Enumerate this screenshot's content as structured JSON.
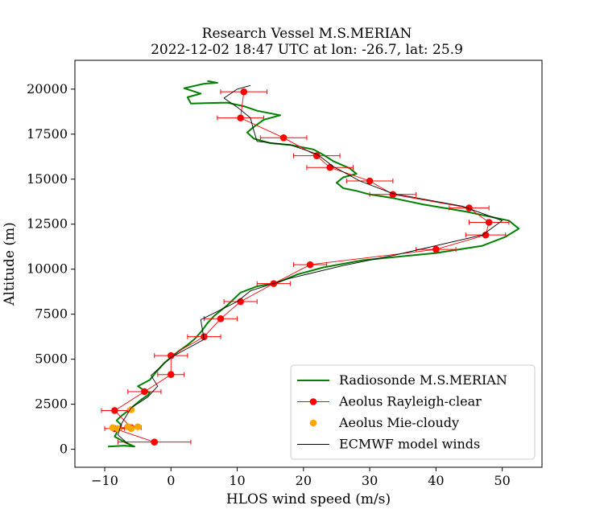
{
  "chart_data": {
    "type": "line",
    "title": "Research Vessel M.S.MERIAN",
    "subtitle": "2022-12-02 18:47 UTC at lon: -26.7, lat: 25.9",
    "xlabel": "HLOS wind speed (m/s)",
    "ylabel": "Altitude (m)",
    "xlim": [
      -14.5,
      56
    ],
    "ylim": [
      -1000,
      21600
    ],
    "xticks": [
      "−10",
      "0",
      "10",
      "20",
      "30",
      "40",
      "50"
    ],
    "xtick_values": [
      -10,
      0,
      10,
      20,
      30,
      40,
      50
    ],
    "yticks": [
      "0",
      "2500",
      "5000",
      "7500",
      "10000",
      "12500",
      "15000",
      "17500",
      "20000"
    ],
    "ytick_values": [
      0,
      2500,
      5000,
      7500,
      10000,
      12500,
      15000,
      17500,
      20000
    ],
    "grid": false,
    "legend_position": "lower-right",
    "series": [
      {
        "name": "Radiosonde M.S.MERIAN",
        "kind": "line",
        "color": "#008000",
        "points": [
          [
            -9.5,
            150
          ],
          [
            -7.0,
            200
          ],
          [
            -5.5,
            150
          ],
          [
            -7.0,
            400
          ],
          [
            -8.5,
            700
          ],
          [
            -8.0,
            1050
          ],
          [
            -7.5,
            1350
          ],
          [
            -8.2,
            1600
          ],
          [
            -7.5,
            1850
          ],
          [
            -6.6,
            2100
          ],
          [
            -5.5,
            2450
          ],
          [
            -4.5,
            2750
          ],
          [
            -3.5,
            3000
          ],
          [
            -3.2,
            3150
          ],
          [
            -4.2,
            3300
          ],
          [
            -5.0,
            3500
          ],
          [
            -3.2,
            3850
          ],
          [
            -2.2,
            4300
          ],
          [
            -1.0,
            4800
          ],
          [
            0.0,
            5100
          ],
          [
            1.0,
            5400
          ],
          [
            2.5,
            5800
          ],
          [
            3.5,
            6100
          ],
          [
            4.5,
            6500
          ],
          [
            5.5,
            7000
          ],
          [
            6.5,
            7400
          ],
          [
            7.5,
            7700
          ],
          [
            8.5,
            8000
          ],
          [
            9.5,
            8350
          ],
          [
            10.5,
            8700
          ],
          [
            13.0,
            9050
          ],
          [
            16.0,
            9250
          ],
          [
            19.0,
            9700
          ],
          [
            23.0,
            10100
          ],
          [
            29.0,
            10500
          ],
          [
            40.0,
            10900
          ],
          [
            47.0,
            11300
          ],
          [
            50.5,
            11800
          ],
          [
            52.5,
            12250
          ],
          [
            51.0,
            12700
          ],
          [
            44.5,
            13200
          ],
          [
            38.0,
            13600
          ],
          [
            33.5,
            13950
          ],
          [
            30.0,
            14150
          ],
          [
            28.0,
            14350
          ],
          [
            26.0,
            14500
          ],
          [
            25.0,
            14800
          ],
          [
            26.0,
            15100
          ],
          [
            28.0,
            15300
          ],
          [
            27.0,
            15600
          ],
          [
            24.5,
            16000
          ],
          [
            23.0,
            16350
          ],
          [
            21.5,
            16650
          ],
          [
            18.0,
            16900
          ],
          [
            15.0,
            17000
          ],
          [
            12.5,
            17250
          ],
          [
            11.5,
            17600
          ],
          [
            12.5,
            17900
          ],
          [
            14.0,
            18300
          ],
          [
            16.5,
            18550
          ],
          [
            13.0,
            18800
          ],
          [
            11.0,
            19050
          ],
          [
            8.5,
            19250
          ],
          [
            3.0,
            19200
          ],
          [
            2.5,
            19550
          ],
          [
            4.5,
            19750
          ],
          [
            2.0,
            20050
          ],
          [
            5.0,
            20300
          ],
          [
            7.0,
            20350
          ],
          [
            5.5,
            20450
          ]
        ]
      },
      {
        "name": "Aeolus Rayleigh-clear",
        "kind": "errorbar-line",
        "color": "#ff0000",
        "points": [
          [
            -2.5,
            400,
            5.5
          ],
          [
            -8.5,
            1150,
            1.5
          ],
          [
            -6.0,
            1200,
            1.5
          ],
          [
            -8.5,
            2150,
            2.0
          ],
          [
            -4.0,
            3200,
            2.5
          ],
          [
            0.0,
            4150,
            2.0
          ],
          [
            0.0,
            5200,
            2.5
          ],
          [
            5.0,
            6250,
            2.5
          ],
          [
            7.5,
            7250,
            2.5
          ],
          [
            10.5,
            8200,
            2.5
          ],
          [
            15.5,
            9200,
            2.5
          ],
          [
            21.0,
            10250,
            2.5
          ],
          [
            40.0,
            11100,
            3.0
          ],
          [
            47.5,
            11900,
            3.0
          ],
          [
            48.0,
            12600,
            3.0
          ],
          [
            45.0,
            13400,
            3.0
          ],
          [
            33.5,
            14150,
            3.5
          ],
          [
            30.0,
            14900,
            3.5
          ],
          [
            24.0,
            15650,
            3.5
          ],
          [
            22.0,
            16300,
            3.5
          ],
          [
            17.0,
            17300,
            3.5
          ],
          [
            10.5,
            18400,
            3.5
          ],
          [
            11.0,
            19850,
            3.5
          ]
        ]
      },
      {
        "name": "Aeolus Mie-cloudy",
        "kind": "scatter",
        "color": "#ffa500",
        "points": [
          [
            -8.0,
            1150
          ],
          [
            -8.8,
            1200
          ],
          [
            -6.0,
            1150
          ],
          [
            -5.0,
            1250
          ],
          [
            -6.5,
            1250
          ],
          [
            -6.0,
            2200
          ]
        ]
      },
      {
        "name": "ECMWF model winds",
        "kind": "line",
        "color": "#000000",
        "points": [
          [
            -6.5,
            300
          ],
          [
            -8.0,
            800
          ],
          [
            -7.5,
            1400
          ],
          [
            -7.0,
            1700
          ],
          [
            -6.0,
            2300
          ],
          [
            -3.5,
            2900
          ],
          [
            -2.0,
            3500
          ],
          [
            -3.0,
            4100
          ],
          [
            0.0,
            5100
          ],
          [
            5.0,
            6100
          ],
          [
            4.5,
            7200
          ],
          [
            10.0,
            8200
          ],
          [
            12.0,
            8800
          ],
          [
            18.0,
            9500
          ],
          [
            26.0,
            10200
          ],
          [
            34.0,
            10800
          ],
          [
            47.0,
            11900
          ],
          [
            50.0,
            12700
          ],
          [
            44.0,
            13500
          ],
          [
            33.5,
            14200
          ],
          [
            28.5,
            14900
          ],
          [
            24.5,
            15700
          ],
          [
            22.0,
            16400
          ],
          [
            18.0,
            16900
          ],
          [
            13.0,
            17100
          ],
          [
            12.5,
            17700
          ],
          [
            12.0,
            18400
          ],
          [
            10.0,
            19000
          ],
          [
            8.0,
            19500
          ],
          [
            10.0,
            20000
          ],
          [
            12.0,
            20200
          ]
        ]
      }
    ]
  }
}
